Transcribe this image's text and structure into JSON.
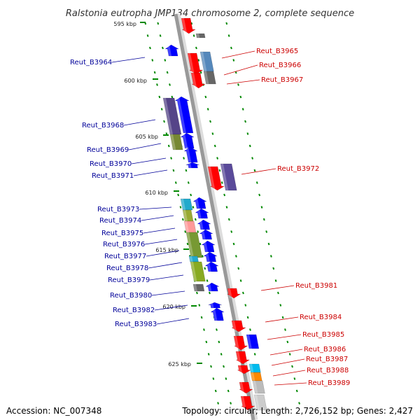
{
  "title": "Ralstonia eutropha JMP134 chromosome 2, complete sequence",
  "footer": {
    "accession": "Accession: NC_007348",
    "topology": "Topology: circular; Length: 2,726,152 bp; Genes: 2,427"
  },
  "colors": {
    "forward": "#ff0000",
    "reverse": "#0000ff",
    "forward_label": "#cc0000",
    "reverse_label": "#000099",
    "backbone": "#999999",
    "ticks": "#008800"
  },
  "scale_labels": [
    "595 kbp",
    "600 kbp",
    "605 kbp",
    "610 kbp",
    "615 kbp",
    "620 kbp",
    "625 kbp"
  ],
  "genes_reverse": [
    "Reut_B3964",
    "Reut_B3968",
    "Reut_B3969",
    "Reut_B3970",
    "Reut_B3971",
    "Reut_B3973",
    "Reut_B3974",
    "Reut_B3975",
    "Reut_B3976",
    "Reut_B3977",
    "Reut_B3978",
    "Reut_B3979",
    "Reut_B3980",
    "Reut_B3982",
    "Reut_B3983"
  ],
  "genes_forward": [
    "Reut_B3965",
    "Reut_B3966",
    "Reut_B3967",
    "Reut_B3972",
    "Reut_B3981",
    "Reut_B3984",
    "Reut_B3985",
    "Reut_B3986",
    "Reut_B3987",
    "Reut_B3988",
    "Reut_B3989"
  ]
}
